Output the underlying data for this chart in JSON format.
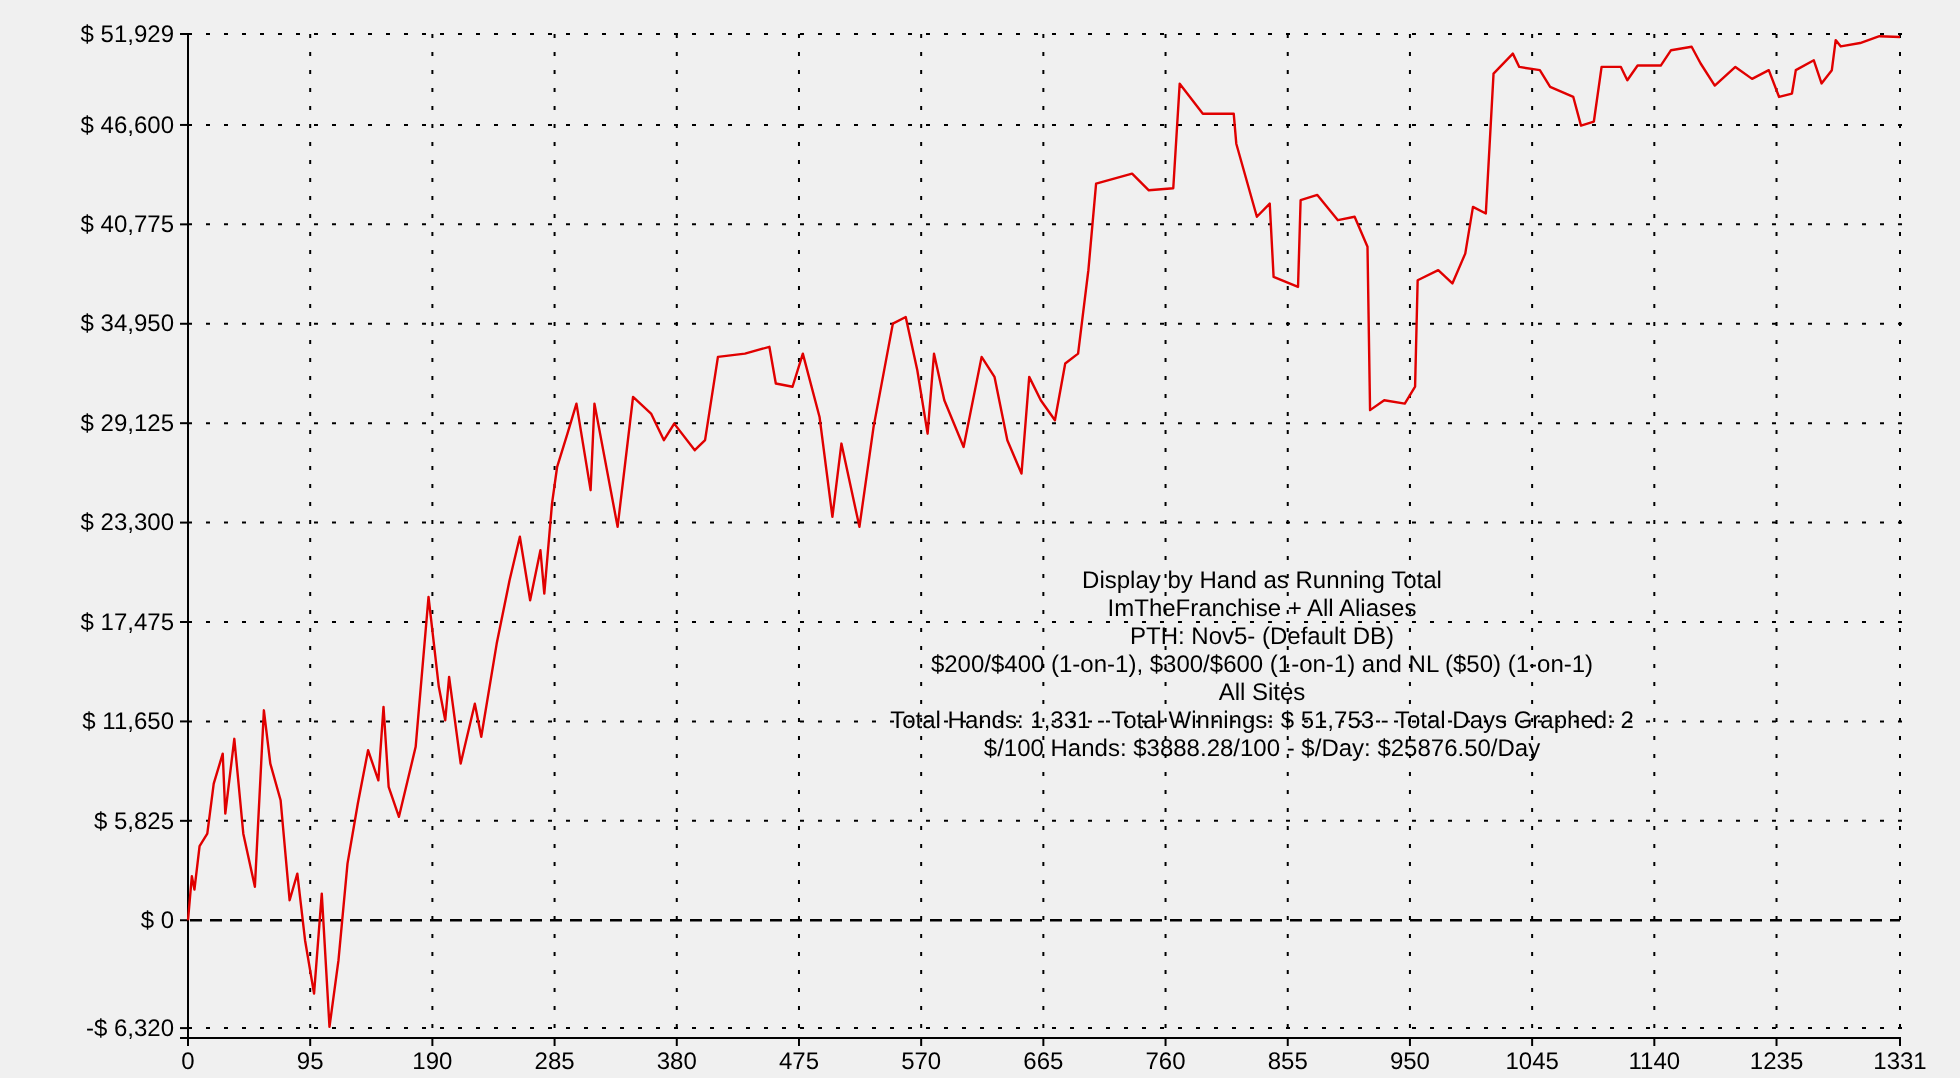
{
  "chart_data": {
    "type": "line",
    "grid": true,
    "marker": "none",
    "line_style": "solid",
    "xlim": [
      0,
      1331
    ],
    "xticks": [
      0,
      95,
      190,
      285,
      380,
      475,
      570,
      665,
      760,
      855,
      950,
      1045,
      1140,
      1235,
      1331
    ],
    "ylim": [
      -6900,
      51929
    ],
    "yticks": [
      {
        "value": -6320,
        "label": "-$ 6,320"
      },
      {
        "value": 0,
        "label": "$ 0"
      },
      {
        "value": 5825,
        "label": "$ 5,825"
      },
      {
        "value": 11650,
        "label": "$ 11,650"
      },
      {
        "value": 17475,
        "label": "$ 17,475"
      },
      {
        "value": 23300,
        "label": "$ 23,300"
      },
      {
        "value": 29125,
        "label": "$ 29,125"
      },
      {
        "value": 34950,
        "label": "$ 34,950"
      },
      {
        "value": 40775,
        "label": "$ 40,775"
      },
      {
        "value": 46600,
        "label": "$ 46,600"
      },
      {
        "value": 51929,
        "label": "$ 51,929"
      }
    ],
    "ref_lines": [
      {
        "axis": "y",
        "value": 0,
        "line_style": "dashed",
        "color": "#000000"
      }
    ],
    "annotations": [
      "Display by Hand as Running Total",
      "ImTheFranchise + All Aliases",
      "PTH: Nov5- (Default DB)",
      "$200/$400 (1-on-1), $300/$600 (1-on-1) and NL ($50) (1-on-1)",
      "All Sites",
      "Total Hands: 1,331 - Total Winnings: $ 51,753 - Total Days Graphed: 2",
      "$/100 Hands: $3888.28/100 - $/Day: $25876.50/Day"
    ],
    "series": [
      {
        "color": "#e00000",
        "x": [
          0,
          3,
          5,
          9,
          15,
          20,
          27,
          29,
          36,
          43,
          52,
          59,
          64,
          72,
          79,
          85,
          91,
          98,
          104,
          110,
          117,
          124,
          132,
          140,
          148,
          152,
          156,
          164,
          177,
          187,
          195,
          200,
          203,
          212,
          223,
          228,
          240,
          250,
          258,
          266,
          274,
          277,
          283,
          287,
          295,
          302,
          313,
          316,
          334,
          346,
          360,
          370,
          378,
          394,
          402,
          412,
          433,
          452,
          457,
          470,
          478,
          491,
          501,
          508,
          522,
          533,
          548,
          558,
          567,
          575,
          580,
          588,
          603,
          617,
          627,
          637,
          648,
          654,
          663,
          674,
          682,
          692,
          700,
          706,
          734,
          747,
          766,
          771,
          789,
          813,
          815,
          831,
          841,
          844,
          863,
          865,
          878,
          894,
          907,
          917,
          919,
          930,
          946,
          954,
          956,
          972,
          983,
          993,
          999,
          1009,
          1015,
          1030,
          1035,
          1051,
          1059,
          1077,
          1083,
          1093,
          1099,
          1114,
          1119,
          1127,
          1145,
          1153,
          1169,
          1176,
          1187,
          1203,
          1216,
          1229,
          1237,
          1247,
          1250,
          1264,
          1270,
          1278,
          1281,
          1285,
          1300,
          1315,
          1331
        ],
        "values": [
          0,
          2580,
          1800,
          4340,
          5070,
          8000,
          9760,
          6250,
          10630,
          5070,
          1960,
          12300,
          9180,
          7030,
          1170,
          2730,
          -1170,
          -4300,
          1560,
          -6250,
          -2340,
          3320,
          6830,
          9960,
          8200,
          12500,
          7820,
          6060,
          10160,
          18950,
          13680,
          11720,
          14260,
          9180,
          12690,
          10750,
          16210,
          19920,
          22470,
          18750,
          21680,
          19140,
          24410,
          26570,
          28510,
          30270,
          25200,
          30270,
          23050,
          30660,
          29690,
          28130,
          29100,
          27540,
          28130,
          33010,
          33200,
          33600,
          31450,
          31260,
          33200,
          29490,
          23640,
          27930,
          23050,
          28910,
          34960,
          35350,
          32230,
          28510,
          33200,
          30470,
          27730,
          33010,
          31840,
          28130,
          26170,
          31840,
          30470,
          29300,
          32620,
          33200,
          38090,
          43160,
          43750,
          42770,
          42890,
          49020,
          47260,
          47260,
          45500,
          41220,
          41990,
          37700,
          37110,
          42190,
          42500,
          41020,
          41220,
          39460,
          29890,
          30470,
          30270,
          31260,
          37500,
          38090,
          37310,
          39060,
          41800,
          41410,
          49610,
          50780,
          50000,
          49810,
          48830,
          48240,
          46560,
          46800,
          50000,
          50000,
          49220,
          50080,
          50080,
          50980,
          51180,
          50200,
          48910,
          50000,
          49300,
          49810,
          48240,
          48440,
          49810,
          50390,
          49030,
          49810,
          51570,
          51200,
          51400,
          51800,
          51753
        ]
      }
    ]
  }
}
